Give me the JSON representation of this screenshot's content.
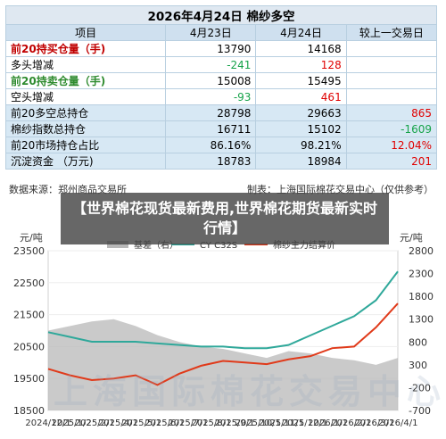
{
  "table": {
    "title": "2026年4月24日 棉纱多空",
    "headers": [
      "项目",
      "4月23日",
      "4月24日",
      "较上一交易日"
    ],
    "rows": [
      {
        "label": "前20持买仓量（手)",
        "label_style": "red",
        "v1": "13790",
        "v2": "14168",
        "chg": "",
        "v1_color": "",
        "v2_color": "",
        "chg_color": "",
        "shaded": false
      },
      {
        "label": "多头增减",
        "label_style": "",
        "v1": "-241",
        "v2": "128",
        "chg": "",
        "v1_color": "green",
        "v2_color": "red",
        "chg_color": "",
        "shaded": false
      },
      {
        "label": "前20持卖仓量（手)",
        "label_style": "green",
        "v1": "15008",
        "v2": "15495",
        "chg": "",
        "v1_color": "",
        "v2_color": "",
        "chg_color": "",
        "shaded": false
      },
      {
        "label": "空头增减",
        "label_style": "",
        "v1": "-93",
        "v2": "461",
        "chg": "",
        "v1_color": "green",
        "v2_color": "red",
        "chg_color": "",
        "shaded": false
      },
      {
        "label": "前20多空总持仓",
        "label_style": "",
        "v1": "28798",
        "v2": "29663",
        "chg": "865",
        "v1_color": "",
        "v2_color": "",
        "chg_color": "red",
        "shaded": true
      },
      {
        "label": "棉纱指数总持仓",
        "label_style": "",
        "v1": "16711",
        "v2": "15102",
        "chg": "-1609",
        "v1_color": "",
        "v2_color": "",
        "chg_color": "green",
        "shaded": true
      },
      {
        "label": "前20市场持仓占比",
        "label_style": "",
        "v1": "86.16%",
        "v2": "98.21%",
        "chg": "12.04%",
        "v1_color": "",
        "v2_color": "",
        "chg_color": "red",
        "shaded": true
      },
      {
        "label": "沉淀资金 （万元)",
        "label_style": "",
        "v1": "18783",
        "v2": "18984",
        "chg": "201",
        "v1_color": "",
        "v2_color": "",
        "chg_color": "red",
        "shaded": true
      }
    ]
  },
  "source_left": "数据来源：郑州商品交易所",
  "source_right": "制表：上海国际棉花交易中心（仅供参考）",
  "banner_text": "【世界棉花现货最新费用,世界棉花期货最新实时行情】",
  "watermark": "上海国际棉花交易中心",
  "colors": {
    "basis": "#b8b8b8",
    "cy": "#2fa89a",
    "futures": "#e03a1a",
    "table_border": "#b8cfe0"
  },
  "chart_data": {
    "type": "line",
    "title": "",
    "left_unit": "元/吨",
    "right_unit": "元/吨",
    "xlabel": "",
    "ylabel": "",
    "categories": [
      "2024/12/1",
      "2025/1/2",
      "2025/2/1",
      "2025/3/1",
      "2025/4/1",
      "2025/5/1",
      "2025/6/1",
      "2025/7/1",
      "2025/8/1",
      "2025/9/1",
      "2025/10/1",
      "2025/11/1",
      "2025/12/1",
      "2026/1/1",
      "2026/2/1",
      "2026/3/1",
      "2026/4/1"
    ],
    "x_tick_labels": [
      "2024/12/1",
      "2025/1/2",
      "2025/2/1",
      "2025/4/1",
      "2025/5/1",
      "2025/6/1",
      "2025/7/1",
      "2025/8/1",
      "2025/9/1",
      "2025/10/1",
      "2025/11/1",
      "2025/12/1",
      "2026/1/1",
      "2026/2/1",
      "2026/3/1",
      "2026/4/1"
    ],
    "left_axis": {
      "ticks": [
        18500,
        19500,
        20500,
        21500,
        22500,
        23500
      ],
      "ylim": [
        18500,
        23500
      ]
    },
    "right_axis": {
      "ticks": [
        -700,
        -200,
        300,
        800,
        1300,
        1800,
        2300,
        2800
      ],
      "ylim": [
        -700,
        2800
      ]
    },
    "legend": {
      "placement": "top",
      "entries": [
        "基差（右）",
        "CY C32S",
        "棉纱主力结算价"
      ]
    },
    "series": [
      {
        "name": "基差（右）",
        "axis": "right",
        "kind": "area",
        "values": [
          1050,
          1150,
          1250,
          1300,
          1150,
          950,
          800,
          700,
          650,
          550,
          450,
          600,
          550,
          450,
          400,
          300,
          450
        ]
      },
      {
        "name": "CY C32S",
        "axis": "left",
        "kind": "line",
        "values": [
          20950,
          20800,
          20650,
          20650,
          20650,
          20600,
          20550,
          20500,
          20500,
          20450,
          20450,
          20550,
          20850,
          21150,
          21450,
          21950,
          22850
        ]
      },
      {
        "name": "棉纱主力结算价",
        "axis": "left",
        "kind": "line",
        "values": [
          19800,
          19600,
          19450,
          19500,
          19600,
          19300,
          19650,
          19900,
          20050,
          20000,
          19950,
          20100,
          20200,
          20450,
          20500,
          21100,
          21850
        ]
      }
    ]
  }
}
